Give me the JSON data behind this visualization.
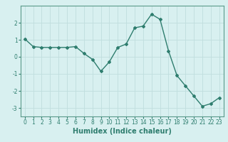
{
  "x": [
    0,
    1,
    2,
    3,
    4,
    5,
    6,
    7,
    8,
    9,
    10,
    11,
    12,
    13,
    14,
    15,
    16,
    17,
    18,
    19,
    20,
    21,
    22,
    23
  ],
  "y": [
    1.05,
    0.6,
    0.55,
    0.55,
    0.55,
    0.55,
    0.6,
    0.2,
    -0.15,
    -0.85,
    -0.3,
    0.55,
    0.75,
    1.7,
    1.8,
    2.5,
    2.2,
    0.35,
    -1.1,
    -1.7,
    -2.3,
    -2.9,
    -2.75,
    -2.4
  ],
  "line_color": "#2e7d6e",
  "marker": "D",
  "markersize": 2.0,
  "linewidth": 1.0,
  "xlabel": "Humidex (Indice chaleur)",
  "xlim": [
    -0.5,
    23.5
  ],
  "ylim": [
    -3.5,
    3.0
  ],
  "yticks": [
    -3,
    -2,
    -1,
    0,
    1,
    2
  ],
  "xticks": [
    0,
    1,
    2,
    3,
    4,
    5,
    6,
    7,
    8,
    9,
    10,
    11,
    12,
    13,
    14,
    15,
    16,
    17,
    18,
    19,
    20,
    21,
    22,
    23
  ],
  "xtick_labels": [
    "0",
    "1",
    "2",
    "3",
    "4",
    "5",
    "6",
    "7",
    "8",
    "9",
    "10",
    "11",
    "12",
    "13",
    "14",
    "15",
    "16",
    "17",
    "18",
    "19",
    "20",
    "21",
    "22",
    "23"
  ],
  "bg_color": "#d8f0f0",
  "grid_color": "#c0dede",
  "tick_fontsize": 5.5,
  "xlabel_fontsize": 7,
  "axis_color": "#5a9a8a"
}
